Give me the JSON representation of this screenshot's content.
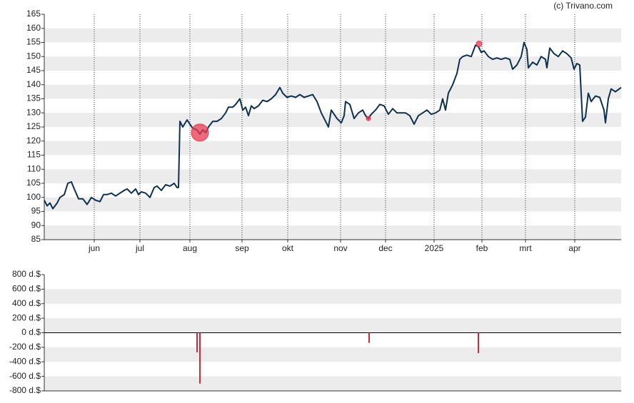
{
  "chart_data": [
    {
      "type": "line",
      "source": "(c) Trivano.com",
      "xlim": [
        0,
        404
      ],
      "xticks": [
        {
          "value": 35,
          "label": "jun"
        },
        {
          "value": 67,
          "label": "jul"
        },
        {
          "value": 102,
          "label": "aug"
        },
        {
          "value": 138.5,
          "label": "sep"
        },
        {
          "value": 170.5,
          "label": "okt"
        },
        {
          "value": 207.5,
          "label": "nov"
        },
        {
          "value": 239,
          "label": "dec"
        },
        {
          "value": 273,
          "label": "2025"
        },
        {
          "value": 306.5,
          "label": "feb"
        },
        {
          "value": 337,
          "label": "mrt"
        },
        {
          "value": 371.5,
          "label": "apr"
        }
      ],
      "ylim": [
        85,
        165
      ],
      "yticks": [
        85,
        90,
        95,
        100,
        105,
        110,
        115,
        120,
        125,
        130,
        135,
        140,
        145,
        150,
        155,
        160,
        165
      ],
      "grid": true,
      "series": [
        {
          "color": "#0d3050",
          "x": [
            0,
            2,
            4,
            6,
            9,
            11,
            14,
            16.5,
            19,
            21,
            24,
            27,
            30,
            33,
            36,
            39,
            41.5,
            44,
            47,
            50,
            53,
            56,
            58,
            61,
            64,
            66,
            68,
            71,
            74,
            77,
            79,
            82,
            85,
            88,
            91,
            93,
            94,
            95,
            97,
            100,
            102,
            104,
            107,
            109,
            111,
            113,
            115,
            118,
            121,
            124,
            127,
            129,
            132,
            134,
            137,
            139,
            141,
            143,
            145,
            147,
            150,
            153,
            156,
            159,
            162,
            165,
            167,
            170,
            173,
            176,
            179,
            182,
            185,
            188,
            191,
            194,
            197,
            199,
            201,
            203,
            205,
            208,
            210,
            211,
            214,
            217,
            220,
            223,
            225,
            227,
            229,
            232,
            235,
            238,
            241,
            244,
            247,
            250,
            253,
            256,
            259,
            262,
            265,
            268,
            271,
            274,
            277,
            279,
            281,
            283,
            286,
            289,
            291,
            293,
            296,
            299,
            302,
            304,
            306,
            308,
            311,
            314,
            317,
            320,
            323,
            326,
            328,
            331,
            334,
            336,
            338,
            339,
            342,
            345,
            348,
            351,
            352,
            354,
            357,
            360,
            363,
            366,
            369,
            371,
            373,
            375,
            377,
            379,
            381,
            383,
            386,
            389,
            392,
            393,
            395,
            397,
            400,
            404
          ],
          "values": [
            99,
            97,
            98,
            96,
            98,
            100,
            101,
            105,
            105.5,
            103,
            99.5,
            99.5,
            97.5,
            100,
            99,
            98.5,
            101,
            101,
            101.5,
            100.5,
            101.5,
            102.5,
            103,
            101.5,
            103,
            101,
            102,
            101.5,
            100,
            103.5,
            104,
            102.5,
            104.5,
            104,
            105,
            103.5,
            103.5,
            127,
            125,
            127.5,
            126,
            124.5,
            124,
            122.5,
            124,
            123,
            125,
            127,
            127,
            128,
            130,
            132,
            132,
            133,
            135,
            131,
            132,
            129,
            132.5,
            131.5,
            132.5,
            134.5,
            134,
            135,
            136.5,
            139,
            137,
            135.5,
            136,
            135.5,
            136.5,
            135.5,
            136,
            136.5,
            134,
            130,
            127,
            125,
            131,
            129.5,
            128,
            126.5,
            129,
            134,
            133,
            128,
            130,
            131,
            129,
            128,
            129.5,
            131,
            133,
            132.5,
            129.5,
            131.5,
            130,
            130,
            130,
            129,
            126,
            129,
            130,
            131,
            129.5,
            130,
            131,
            135,
            131,
            137,
            140,
            144,
            149,
            150,
            150.5,
            150,
            154,
            153.5,
            151.5,
            152,
            150,
            149,
            149.5,
            149,
            149.5,
            149,
            145.5,
            147,
            150,
            155,
            152.5,
            146,
            148,
            147,
            150,
            149,
            146,
            153,
            151,
            150,
            152,
            151,
            149.5,
            145.5,
            147.5,
            147,
            127,
            128.5,
            137,
            134,
            136,
            135.5,
            131,
            126.5,
            135,
            138.5,
            137.5,
            139
          ]
        }
      ],
      "markers": {
        "color": "#e8384f",
        "x": [
          109,
          227,
          304.5
        ],
        "values": [
          123,
          128,
          154.5
        ],
        "sizes": [
          12,
          3,
          4
        ]
      }
    },
    {
      "type": "bar",
      "color": "#d62839",
      "xlim": [
        0,
        404
      ],
      "ylim": [
        -800,
        800
      ],
      "yticks": [
        {
          "value": -800,
          "label": "-800 d.$"
        },
        {
          "value": -600,
          "label": "-600 d.$"
        },
        {
          "value": -400,
          "label": "-400 d.$"
        },
        {
          "value": -200,
          "label": "-200 d.$"
        },
        {
          "value": 0,
          "label": "0 d.$"
        },
        {
          "value": 200,
          "label": "200 d.$"
        },
        {
          "value": 400,
          "label": "400 d.$"
        },
        {
          "value": 600,
          "label": "600 d.$"
        },
        {
          "value": 800,
          "label": "800 d.$"
        }
      ],
      "grid": true,
      "x": [
        107,
        109,
        227.5,
        304
      ],
      "values": [
        -270,
        -700,
        -140,
        -280
      ]
    }
  ]
}
